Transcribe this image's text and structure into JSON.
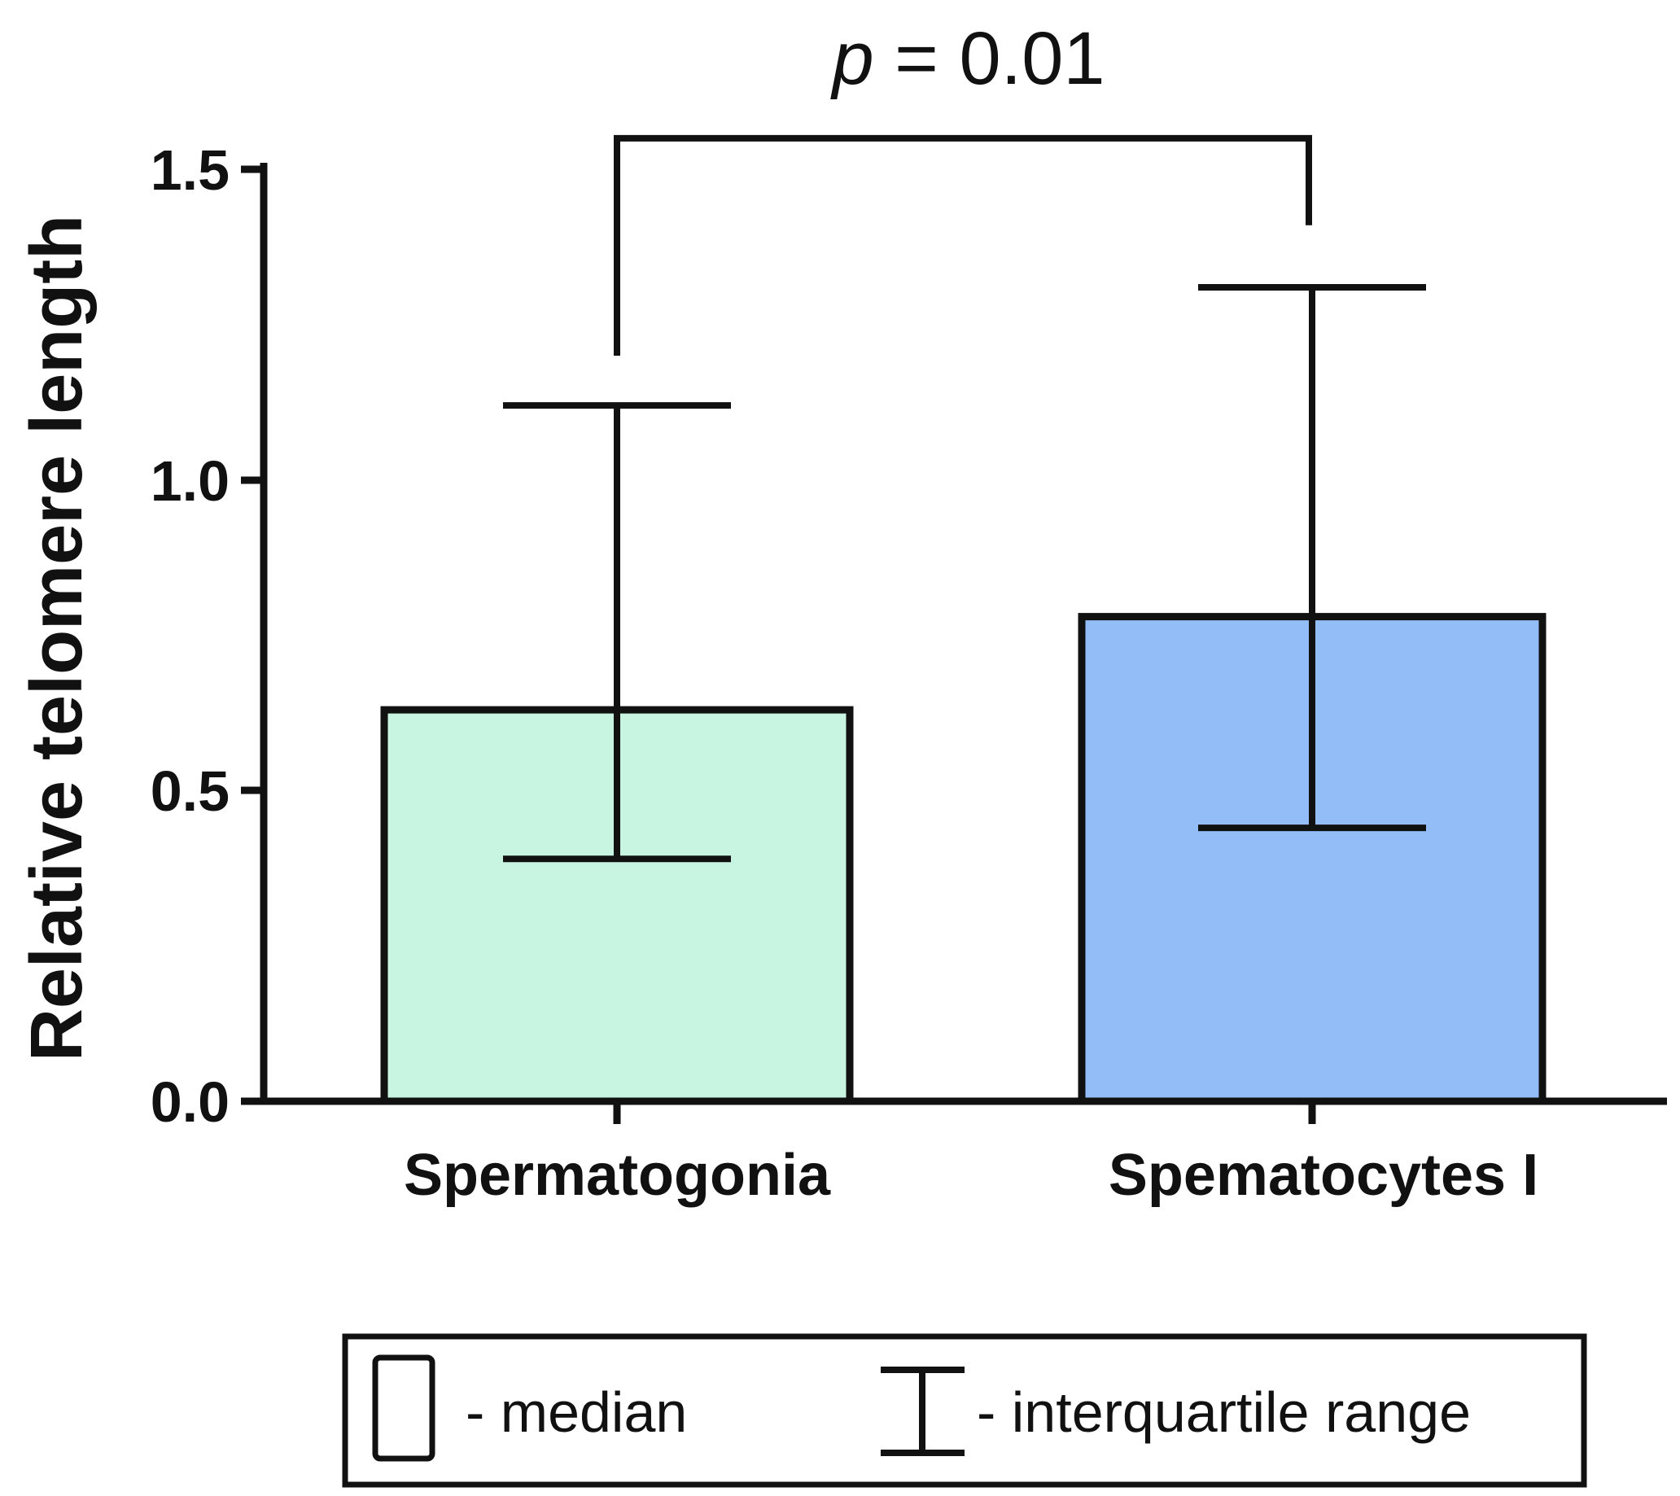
{
  "chart_data": {
    "type": "bar",
    "title": "",
    "xlabel": "",
    "ylabel": "Relative telomere length",
    "ylim": [
      0,
      1.5
    ],
    "yticks": [
      "0.0",
      "0.5",
      "1.0",
      "1.5"
    ],
    "categories": [
      "Spermatogonia",
      "Spematocytes I"
    ],
    "series": [
      {
        "name": "median",
        "values": [
          0.63,
          0.78
        ],
        "iqr_low": [
          0.39,
          0.44
        ],
        "iqr_high": [
          1.12,
          1.31
        ],
        "colors": [
          "#c8f5e2",
          "#93bdf7"
        ]
      }
    ],
    "annotation": {
      "p_symbol": "p",
      "p_rest": " = 0.01",
      "left_arm_end": 1.2,
      "right_arm_end": 1.41,
      "bracket_top": 1.55
    },
    "legend": {
      "median_label": "- median",
      "iqr_label": "- interquartile range",
      "position": "bottom"
    },
    "grid": false
  }
}
